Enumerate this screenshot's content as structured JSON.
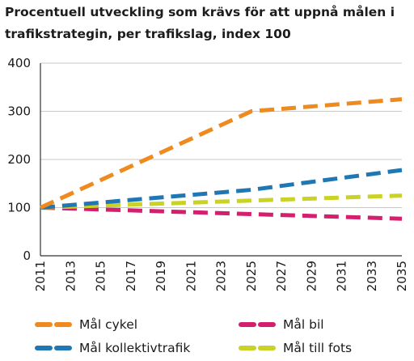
{
  "title_line1": "Procentuell utveckling som krävs för att uppnå målen i",
  "title_line2": "trafikstrategin, per trafikslag, index 100",
  "chart_data": {
    "type": "line",
    "title": "Procentuell utveckling som krävs för att uppnå målen i trafikstrategin, per trafikslag, index 100",
    "xlabel": "",
    "ylabel": "",
    "x": [
      2011,
      2013,
      2015,
      2017,
      2019,
      2021,
      2023,
      2025,
      2027,
      2029,
      2031,
      2033,
      2035
    ],
    "x_ticks": [
      "2011",
      "2013",
      "2015",
      "2017",
      "2019",
      "2021",
      "2023",
      "2025",
      "2027",
      "2029",
      "2031",
      "2033",
      "2035"
    ],
    "y_ticks": [
      "0",
      "100",
      "200",
      "300",
      "400"
    ],
    "ylim": [
      0,
      400
    ],
    "xlim": [
      2011,
      2035
    ],
    "grid": "horizontal",
    "legend_position": "bottom",
    "line_style": "dashed",
    "series": [
      {
        "name": "Mål cykel",
        "color": "#ef8a1f",
        "points": [
          [
            2011,
            100
          ],
          [
            2025,
            300
          ],
          [
            2035,
            325
          ]
        ]
      },
      {
        "name": "Mål bil",
        "color": "#d41f6e",
        "points": [
          [
            2011,
            100
          ],
          [
            2035,
            77
          ]
        ]
      },
      {
        "name": "Mål kollektivtrafik",
        "color": "#1f78b4",
        "points": [
          [
            2011,
            100
          ],
          [
            2025,
            137
          ],
          [
            2035,
            178
          ]
        ]
      },
      {
        "name": "Mål till fots",
        "color": "#c9d225",
        "points": [
          [
            2011,
            100
          ],
          [
            2035,
            125
          ]
        ]
      }
    ]
  }
}
